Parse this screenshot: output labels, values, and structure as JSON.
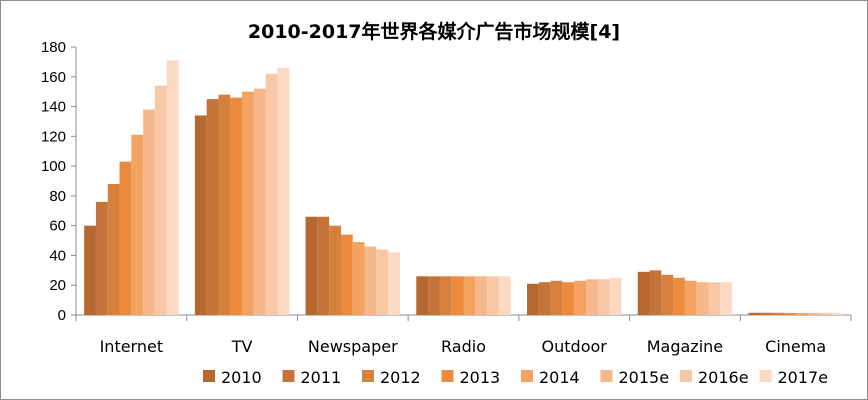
{
  "chart_data": {
    "type": "bar",
    "title": "2010-2017年世界各媒介广告市场规模[4]",
    "xlabel": "",
    "ylabel": "",
    "ylim": [
      0,
      180
    ],
    "yticks": [
      0,
      20,
      40,
      60,
      80,
      100,
      120,
      140,
      160,
      180
    ],
    "grid": false,
    "legend_position": "bottom",
    "categories": [
      "Internet",
      "TV",
      "Newspaper",
      "Radio",
      "Outdoor",
      "Magazine",
      "Cinema"
    ],
    "series": [
      {
        "name": "2010",
        "color": "#b5692f",
        "values": [
          60,
          134,
          66,
          26,
          21,
          29,
          1.5
        ]
      },
      {
        "name": "2011",
        "color": "#c4733a",
        "values": [
          76,
          145,
          66,
          26,
          22,
          30,
          1.5
        ]
      },
      {
        "name": "2012",
        "color": "#d5803c",
        "values": [
          88,
          148,
          60,
          26,
          23,
          27,
          1.5
        ]
      },
      {
        "name": "2013",
        "color": "#ec8b3e",
        "values": [
          103,
          146,
          54,
          26,
          22,
          25,
          1.4
        ]
      },
      {
        "name": "2014",
        "color": "#f2a261",
        "values": [
          121,
          150,
          49,
          26,
          23,
          23,
          1.4
        ]
      },
      {
        "name": "2015e",
        "color": "#f6b78a",
        "values": [
          138,
          152,
          46,
          26,
          24,
          22,
          1.4
        ]
      },
      {
        "name": "2016e",
        "color": "#f8c7a6",
        "values": [
          154,
          162,
          44,
          26,
          24,
          22,
          1.4
        ]
      },
      {
        "name": "2017e",
        "color": "#fbd9c3",
        "values": [
          171,
          166,
          42,
          26,
          25,
          22,
          1.3
        ]
      }
    ]
  }
}
